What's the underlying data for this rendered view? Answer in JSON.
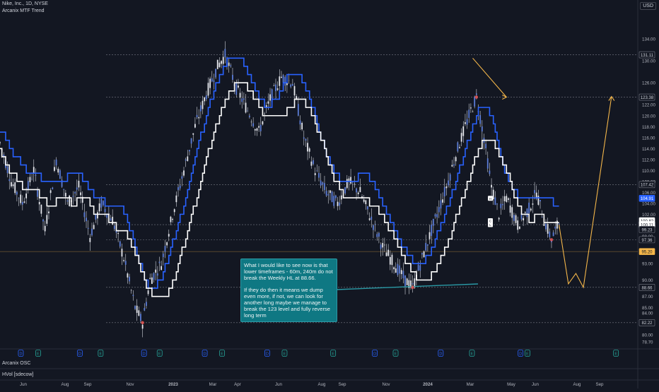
{
  "header": {
    "symbol_line": "Nike, Inc., 1D, NYSE",
    "indicator": "Arcanix MTF Trend",
    "currency": "USD"
  },
  "subpanes": {
    "osc_label": "Arcanix OSC",
    "hvol_label": "HVol [sdecow]"
  },
  "annotation": {
    "para1": "What I would like to see now is that lower timeframes - 60m, 240m do not break the Weekly HL at 88.66.",
    "para2": "If they do then it means we dump even more, if not, we can look for another long maybe we manage to break the 123 level and fully reverse long term"
  },
  "colors": {
    "background": "#131722",
    "candles": "#d1d4dc",
    "trend_blue": "#2962ff",
    "trend_white": "#ffffff",
    "projection": "#f5b74a",
    "note_bg": "#0f7883",
    "current_price_line": "#f5b74a"
  },
  "chart_data": {
    "type": "line",
    "title": "Nike, Inc., 1D, NYSE",
    "price_axis": {
      "ticks": [
        134.0,
        130.0,
        126.0,
        122.0,
        120.0,
        118.0,
        116.0,
        114.0,
        112.0,
        110.0,
        108.0,
        106.0,
        104.0,
        102.0,
        100.0,
        98.0,
        95.0,
        93.0,
        90.0,
        87.0,
        85.0,
        84.0,
        82.0,
        80.0,
        78.7
      ],
      "ylim": [
        78.2,
        137.5
      ]
    },
    "time_axis": {
      "labels": [
        "Jun",
        "Aug",
        "Sep",
        "Nov",
        "2023",
        "Mar",
        "Apr",
        "Jun",
        "Aug",
        "Sep",
        "Nov",
        "2024",
        "Mar",
        "May",
        "Jun",
        "Aug",
        "Sep"
      ]
    },
    "price_badges": [
      {
        "label": "131.11",
        "value": 131.11,
        "style": "level"
      },
      {
        "label": "123.38",
        "value": 123.38,
        "style": "level"
      },
      {
        "label": "107.42",
        "value": 107.42,
        "style": "level"
      },
      {
        "label": "104.91",
        "value": 104.91,
        "style": "blue"
      },
      {
        "label": "100.82",
        "value": 100.82,
        "style": "white"
      },
      {
        "label": "100.11",
        "value": 100.11,
        "style": "white"
      },
      {
        "label": "100.11",
        "value": 100.11,
        "style": "white"
      },
      {
        "label": "99.23",
        "value": 99.23,
        "style": "level"
      },
      {
        "label": "97.36",
        "value": 97.36,
        "style": "level"
      },
      {
        "label": "95.20",
        "value": 95.2,
        "style": "orange"
      },
      {
        "label": "88.66",
        "value": 88.66,
        "style": "level"
      },
      {
        "label": "82.22",
        "value": 82.22,
        "style": "level"
      }
    ],
    "horizontal_levels": [
      131.11,
      123.38,
      107.42,
      100.11,
      97.36,
      88.66,
      82.22
    ],
    "current_price": 95.2,
    "series": [
      {
        "name": "Arcanix MTF Trend (fast)",
        "color": "#2962ff"
      },
      {
        "name": "Arcanix MTF Trend (slow)",
        "color": "#ffffff"
      }
    ],
    "price_path": [
      [
        0,
        115
      ],
      [
        6,
        108
      ],
      [
        12,
        104
      ],
      [
        18,
        110
      ],
      [
        24,
        99
      ],
      [
        30,
        112
      ],
      [
        36,
        104
      ],
      [
        42,
        107
      ],
      [
        48,
        98
      ],
      [
        54,
        104
      ],
      [
        60,
        101
      ],
      [
        66,
        94
      ],
      [
        72,
        85
      ],
      [
        76,
        82.2
      ],
      [
        80,
        90
      ],
      [
        86,
        93
      ],
      [
        92,
        102
      ],
      [
        98,
        110
      ],
      [
        104,
        118
      ],
      [
        110,
        124
      ],
      [
        116,
        129
      ],
      [
        120,
        131.1
      ],
      [
        126,
        125
      ],
      [
        132,
        121
      ],
      [
        138,
        117
      ],
      [
        144,
        123
      ],
      [
        150,
        127
      ],
      [
        156,
        126
      ],
      [
        162,
        116
      ],
      [
        168,
        110
      ],
      [
        174,
        106
      ],
      [
        180,
        104
      ],
      [
        186,
        108
      ],
      [
        192,
        106
      ],
      [
        198,
        101
      ],
      [
        204,
        96
      ],
      [
        210,
        93
      ],
      [
        216,
        90
      ],
      [
        220,
        88.66
      ],
      [
        226,
        95
      ],
      [
        232,
        101
      ],
      [
        238,
        107
      ],
      [
        244,
        114
      ],
      [
        250,
        120
      ],
      [
        254,
        123.4
      ],
      [
        258,
        116
      ],
      [
        262,
        107
      ],
      [
        266,
        102
      ],
      [
        270,
        105
      ],
      [
        276,
        100
      ],
      [
        282,
        103
      ],
      [
        286,
        106
      ],
      [
        290,
        101
      ],
      [
        294,
        97.4
      ],
      [
        298,
        100.5
      ]
    ],
    "projection_path": [
      [
        252,
        130.5
      ],
      [
        270,
        123.38
      ],
      [
        298,
        100.11
      ],
      [
        303,
        89.3
      ],
      [
        307,
        91.2
      ],
      [
        311,
        88.66
      ],
      [
        326,
        123.5
      ]
    ]
  }
}
